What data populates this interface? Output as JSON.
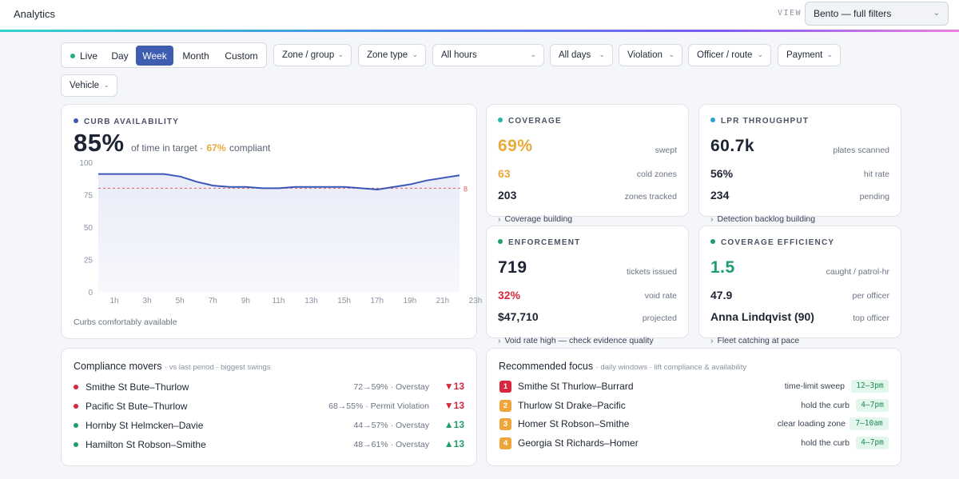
{
  "header": {
    "title": "Analytics",
    "view_label": "VIEW",
    "view_value": "Bento — full filters"
  },
  "filters": {
    "periods": [
      "Live",
      "Day",
      "Week",
      "Month",
      "Custom"
    ],
    "active_period": "Week",
    "dropdowns": [
      "Zone / group",
      "Zone type",
      "All hours",
      "All days",
      "Violation",
      "Officer / route",
      "Payment",
      "Vehicle"
    ]
  },
  "curb": {
    "label": "CURB AVAILABILITY",
    "value": "85%",
    "desc": "of time in target ·",
    "compliant_value": "67%",
    "compliant_label": "compliant",
    "footer": "Curbs comfortably available",
    "target_marker": "8"
  },
  "chart_data": {
    "type": "area",
    "x": [
      "1h",
      "2h",
      "3h",
      "4h",
      "5h",
      "6h",
      "7h",
      "8h",
      "9h",
      "10h",
      "11h",
      "12h",
      "13h",
      "14h",
      "15h",
      "16h",
      "17h",
      "18h",
      "19h",
      "20h",
      "21h",
      "22h",
      "23h"
    ],
    "tick_labels": [
      "1h",
      "3h",
      "5h",
      "7h",
      "9h",
      "11h",
      "13h",
      "15h",
      "17h",
      "19h",
      "21h",
      "23h"
    ],
    "y_ticks": [
      "100",
      "75",
      "50",
      "25",
      "0"
    ],
    "ylim": [
      0,
      100
    ],
    "target": 80,
    "series": [
      {
        "values": [
          91,
          91,
          91,
          91,
          91,
          89,
          85,
          82,
          81,
          81,
          80,
          80,
          81,
          81,
          81,
          81,
          80,
          79,
          81,
          83,
          86,
          88,
          90
        ]
      }
    ],
    "colors": {
      "line": "#3a57b8",
      "target": "#e05a5a",
      "fill": "#e9ecf8"
    }
  },
  "coverage": {
    "label": "COVERAGE",
    "big": "69%",
    "big_label": "swept",
    "r1_val": "63",
    "r1_label": "cold zones",
    "r2_val": "203",
    "r2_label": "zones tracked",
    "footer": "Coverage building"
  },
  "lpr": {
    "label": "LPR THROUGHPUT",
    "big": "60.7k",
    "big_label": "plates scanned",
    "r1_val": "56%",
    "r1_label": "hit rate",
    "r2_val": "234",
    "r2_label": "pending",
    "footer": "Detection backlog building"
  },
  "enforcement": {
    "label": "ENFORCEMENT",
    "big": "719",
    "big_label": "tickets issued",
    "r1_val": "32%",
    "r1_label": "void rate",
    "r2_val": "$47,710",
    "r2_label": "projected",
    "footer": "Void rate high — check evidence quality"
  },
  "efficiency": {
    "label": "COVERAGE EFFICIENCY",
    "big": "1.5",
    "big_label": "caught / patrol-hr",
    "r1_val": "47.9",
    "r1_label": "per officer",
    "r2_val": "Anna Lindqvist (90)",
    "r2_label": "top officer",
    "footer": "Fleet catching at pace"
  },
  "movers": {
    "title": "Compliance movers",
    "subtitle": "· vs last period · biggest swings",
    "items": [
      {
        "name": "Smithe St Bute–Thurlow",
        "detail": "72→59% · Overstay",
        "delta": "▼13",
        "dir": "down"
      },
      {
        "name": "Pacific St Bute–Thurlow",
        "detail": "68→55% · Permit Violation",
        "delta": "▼13",
        "dir": "down"
      },
      {
        "name": "Hornby St Helmcken–Davie",
        "detail": "44→57% · Overstay",
        "delta": "▲13",
        "dir": "up"
      },
      {
        "name": "Hamilton St Robson–Smithe",
        "detail": "48→61% · Overstay",
        "delta": "▲13",
        "dir": "up"
      }
    ]
  },
  "focus": {
    "title": "Recommended focus",
    "subtitle": "· daily windows · lift compliance & availability",
    "items": [
      {
        "rank": "1",
        "name": "Smithe St Thurlow–Burrard",
        "action": "time-limit sweep",
        "time": "12–3pm"
      },
      {
        "rank": "2",
        "name": "Thurlow St Drake–Pacific",
        "action": "hold the curb",
        "time": "4–7pm"
      },
      {
        "rank": "3",
        "name": "Homer St Robson–Smithe",
        "action": "clear loading zone",
        "time": "7–10am"
      },
      {
        "rank": "4",
        "name": "Georgia St Richards–Homer",
        "action": "hold the curb",
        "time": "4–7pm"
      }
    ]
  },
  "colors": {
    "accent": "#3f5db0",
    "amber": "#e8a93a",
    "red": "#d7263d",
    "green": "#1f9d6a",
    "teal": "#2bb3a8",
    "blue": "#2c9fd6"
  }
}
